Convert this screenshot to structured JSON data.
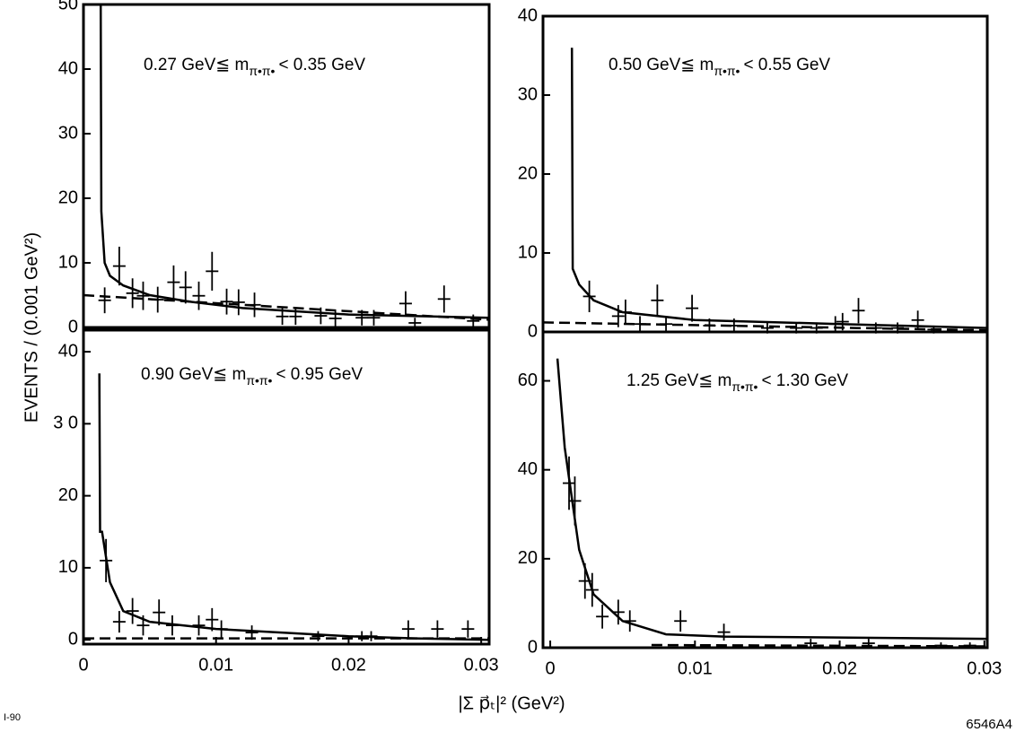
{
  "ylabel": "EVENTS / (0.001 GeV²)",
  "xlabel": "|Σ p⃗ₜ|²  (GeV²)",
  "date_code": "I-90",
  "figure_id": "6546A4",
  "chart_data": [
    {
      "type": "scatter",
      "color": "#000000",
      "title": "0.27 GeV≦ m",
      "title_sub": "π•π•",
      "title_end": "< 0.35 GeV",
      "xlim": [
        0,
        0.0306
      ],
      "ylim": [
        0,
        50
      ],
      "yticks": [
        0,
        10,
        20,
        30,
        40,
        50
      ],
      "x": [
        0.0016,
        0.0027,
        0.0037,
        0.0045,
        0.0056,
        0.0068,
        0.0077,
        0.0087,
        0.0097,
        0.0108,
        0.0117,
        0.0129,
        0.015,
        0.016,
        0.0179,
        0.019,
        0.021,
        0.0219,
        0.0243,
        0.025,
        0.0272,
        0.0294
      ],
      "values": [
        4.2,
        9.5,
        5.3,
        4.9,
        4.3,
        7,
        6.2,
        4.9,
        8.7,
        4,
        3.9,
        3.5,
        1.7,
        1.7,
        1.8,
        1.4,
        1.5,
        1.5,
        3.7,
        0.7,
        4.4,
        1
      ],
      "errors": [
        2,
        3,
        2.3,
        2.2,
        2,
        2.6,
        2.5,
        2.2,
        3,
        2,
        2,
        1.9,
        1.3,
        1.3,
        1.3,
        1.2,
        1.2,
        1.2,
        1.9,
        0.8,
        2.1,
        1
      ],
      "curves": [
        {
          "style": "solid",
          "x": [
            0.0013,
            0.00135,
            0.0016,
            0.002,
            0.003,
            0.005,
            0.008,
            0.012,
            0.02,
            0.0306
          ],
          "values": [
            50,
            18,
            10,
            8,
            6.5,
            5,
            4,
            3,
            2,
            1.5
          ]
        },
        {
          "style": "dashed",
          "x": [
            0,
            0.0306
          ],
          "values": [
            5,
            1.2
          ]
        }
      ]
    },
    {
      "type": "scatter",
      "color": "#000000",
      "title": "0.50 GeV≦ m",
      "title_sub": "π•π•",
      "title_end": "< 0.55 GeV",
      "xlim": [
        -0.0005,
        0.0302
      ],
      "ylim": [
        0,
        40
      ],
      "yticks": [
        0,
        10,
        20,
        30,
        40
      ],
      "x": [
        0.0027,
        0.0047,
        0.0052,
        0.0062,
        0.0074,
        0.008,
        0.0098,
        0.011,
        0.0127,
        0.015,
        0.017,
        0.0184,
        0.0197,
        0.0202,
        0.0213,
        0.0225,
        0.024,
        0.0254,
        0.0265
      ],
      "values": [
        4.5,
        2,
        2.5,
        1,
        4,
        1,
        3,
        0.8,
        0.8,
        0.5,
        0.5,
        0.5,
        1,
        1.3,
        2.7,
        0.5,
        0.5,
        1.5,
        0.3
      ],
      "errors": [
        2,
        1.4,
        1.6,
        1,
        2,
        1,
        1.7,
        0.9,
        0.9,
        0.7,
        0.7,
        0.7,
        1,
        1.1,
        1.6,
        0.7,
        0.7,
        1.2,
        0.5
      ],
      "curves": [
        {
          "style": "solid",
          "x": [
            0.0015,
            0.00155,
            0.002,
            0.003,
            0.005,
            0.01,
            0.02,
            0.0302
          ],
          "values": [
            36,
            8,
            6,
            4,
            2.5,
            1.5,
            1,
            0.5
          ]
        },
        {
          "style": "dashed",
          "x": [
            -0.0005,
            0.0302
          ],
          "values": [
            1.2,
            0.2
          ]
        }
      ]
    },
    {
      "type": "scatter",
      "color": "#000000",
      "title": "0.90 GeV≦ m",
      "title_sub": "π•π•",
      "title_end": "< 0.95 GeV",
      "xlim": [
        0,
        0.0306
      ],
      "ylim": [
        -0.6,
        43
      ],
      "yticks": [
        0,
        10,
        20,
        {
          "value": 30,
          "label": "3 0"
        },
        40
      ],
      "xticks": [
        0,
        0.01,
        0.02,
        0.03
      ],
      "x": [
        0.0017,
        0.0027,
        0.0037,
        0.0045,
        0.0057,
        0.0067,
        0.0087,
        0.0097,
        0.0104,
        0.0127,
        0.0177,
        0.021,
        0.0217,
        0.0245,
        0.0267,
        0.029
      ],
      "values": [
        11,
        2.5,
        4,
        2,
        3.8,
        2,
        2,
        2.8,
        1.5,
        1,
        0.5,
        0.5,
        0.5,
        1.5,
        1.5,
        1.5
      ],
      "errors": [
        3,
        1.5,
        1.8,
        1.4,
        1.8,
        1.4,
        1.4,
        1.6,
        1.2,
        1,
        0.7,
        0.7,
        0.7,
        1.2,
        1.2,
        1.2
      ],
      "curves": [
        {
          "style": "solid",
          "x": [
            0.0012,
            0.00125,
            0.0014,
            0.002,
            0.003,
            0.005,
            0.01,
            0.02,
            0.025,
            0.0306
          ],
          "values": [
            37,
            15,
            15,
            8,
            4,
            2.5,
            1.5,
            0.5,
            0.2,
            0
          ]
        },
        {
          "style": "dashed",
          "x": [
            0,
            0.0306
          ],
          "values": [
            0.2,
            0.2
          ]
        }
      ]
    },
    {
      "type": "scatter",
      "color": "#000000",
      "title": "1.25 GeV≦ m",
      "title_sub": "π•π•",
      "title_end": "< 1.30 GeV",
      "xlim": [
        -0.0005,
        0.0302
      ],
      "ylim": [
        0,
        71
      ],
      "yticks": [
        0,
        20,
        40,
        60
      ],
      "xticks": [
        0,
        0.01,
        0.02,
        0.03
      ],
      "x": [
        0.0013,
        0.0017,
        0.0024,
        0.0029,
        0.0036,
        0.0047,
        0.0055,
        0.009,
        0.012,
        0.018,
        0.022,
        0.027,
        0.029
      ],
      "values": [
        37,
        33,
        15,
        13,
        7,
        8,
        6,
        6,
        3.5,
        1,
        1,
        0.5,
        0.5
      ],
      "errors": [
        6,
        5.5,
        4,
        3.8,
        2.7,
        2.8,
        2.4,
        2.4,
        1.9,
        1,
        1,
        0.7,
        0.7
      ],
      "curves": [
        {
          "style": "solid",
          "x": [
            0.0005,
            0.001,
            0.002,
            0.003,
            0.005,
            0.008,
            0.012,
            0.0302
          ],
          "values": [
            65,
            45,
            22,
            12,
            6,
            3,
            2.5,
            2
          ]
        },
        {
          "style": "dashed",
          "x": [
            0.007,
            0.0302
          ],
          "values": [
            0.6,
            0.3
          ]
        }
      ]
    }
  ]
}
